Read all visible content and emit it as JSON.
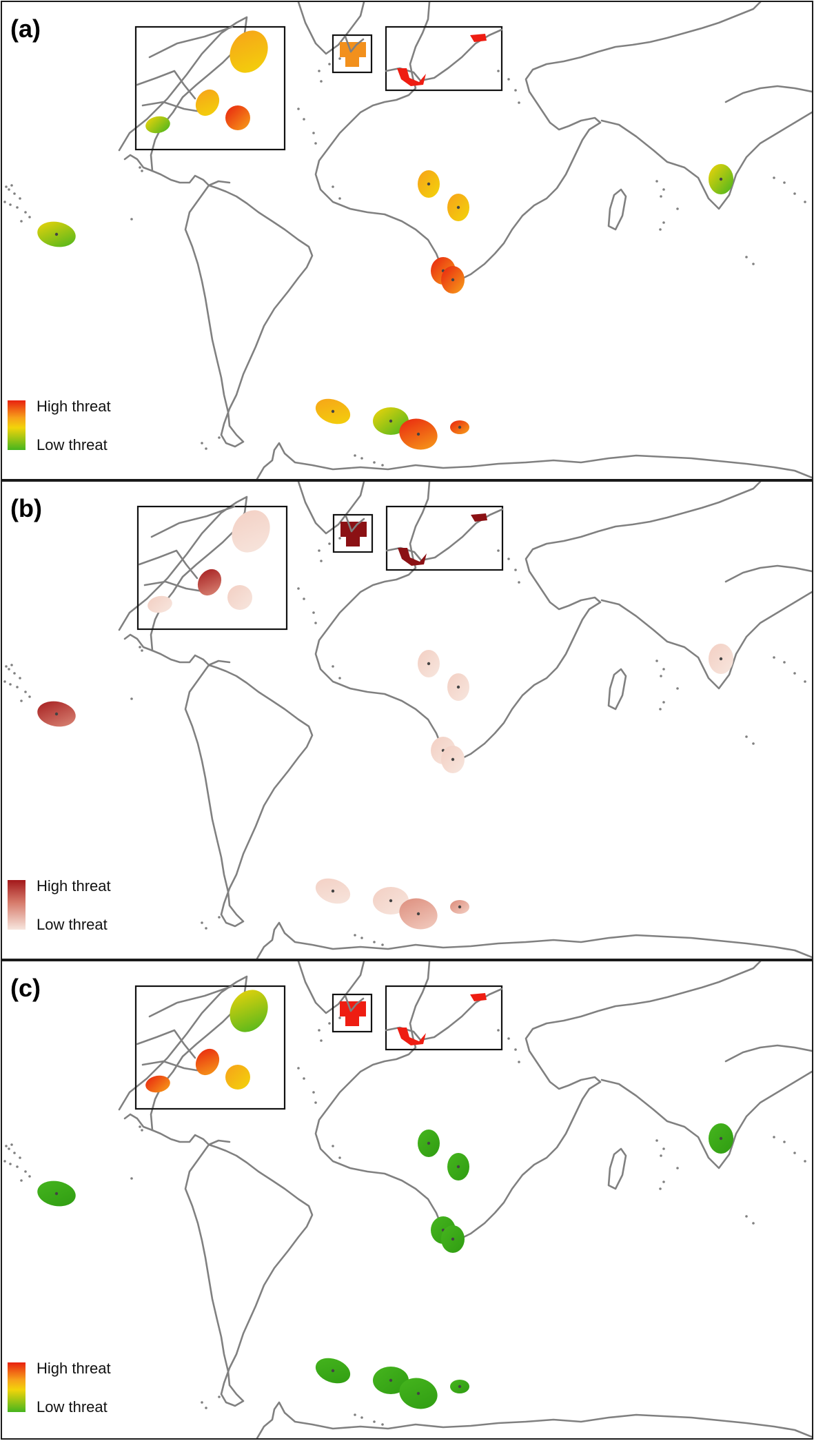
{
  "panels": [
    {
      "id": "a",
      "label": "(a)",
      "scheme": "rdylgn"
    },
    {
      "id": "b",
      "label": "(b)",
      "scheme": "reds"
    },
    {
      "id": "c",
      "label": "(c)",
      "scheme": "rdylgn"
    }
  ],
  "legend": {
    "high_label": "High threat",
    "low_label": "Low threat"
  },
  "colors": {
    "coastline": "#808080",
    "high_threat_a": "#e8210f",
    "mid_threat_a": "#f2d40a",
    "low_threat_a": "#46b51e",
    "high_threat_b": "#a3191b",
    "low_threat_b": "#f7e6de"
  }
}
